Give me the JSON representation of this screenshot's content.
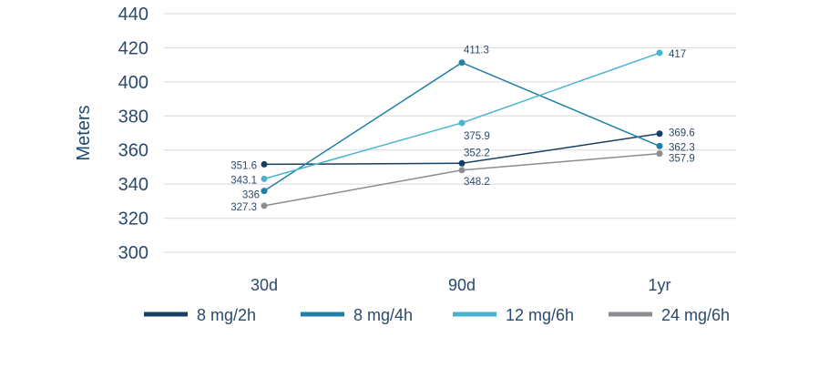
{
  "chart_data": {
    "type": "line",
    "title": "",
    "xlabel": "",
    "ylabel": "Meters",
    "categories": [
      "30d",
      "90d",
      "1yr"
    ],
    "ylim": [
      300,
      440
    ],
    "yticks": [
      300,
      320,
      340,
      360,
      380,
      400,
      420,
      440
    ],
    "grid": true,
    "legend_position": "bottom",
    "series": [
      {
        "name": "8 mg/2h",
        "color": "#173f63",
        "values": [
          351.6,
          352.2,
          369.6
        ],
        "labels": [
          "351.6",
          "352.2",
          "369.6"
        ]
      },
      {
        "name": "8 mg/4h",
        "color": "#1f7fa6",
        "values": [
          336,
          411.3,
          362.3
        ],
        "labels": [
          "336",
          "411.3",
          "362.3"
        ]
      },
      {
        "name": "12 mg/6h",
        "color": "#4ab3cf",
        "values": [
          343.1,
          375.9,
          417
        ],
        "labels": [
          "343.1",
          "375.9",
          "417"
        ]
      },
      {
        "name": "24 mg/6h",
        "color": "#8a8d91",
        "values": [
          327.3,
          348.2,
          357.9
        ],
        "labels": [
          "327.3",
          "348.2",
          "357.9"
        ]
      }
    ]
  }
}
